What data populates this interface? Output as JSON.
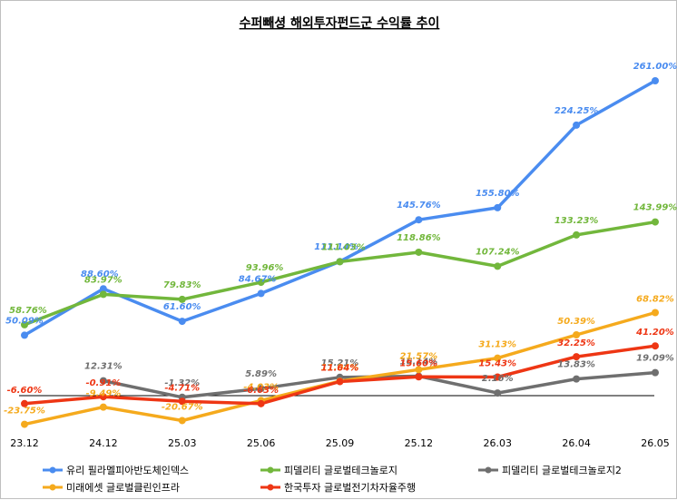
{
  "chart_data": {
    "type": "line",
    "title": "수퍼빼셩 해외투자펀드군 수익률 추이",
    "categories": [
      "23.12",
      "24.12",
      "25.03",
      "25.06",
      "25.09",
      "25.12",
      "26.03",
      "26.04",
      "26.05"
    ],
    "ylim": [
      -40,
      280
    ],
    "grid": false,
    "legend_position": "bottom",
    "series": [
      {
        "name": "유리 필라멜피아반도체인덱스",
        "color": "#4a8cf0",
        "values": [
          50.09,
          88.6,
          61.6,
          84.67,
          111.14,
          145.76,
          155.8,
          224.25,
          261.0
        ],
        "labels": [
          "50.09%",
          "88.60%",
          "61.60%",
          "84.67%",
          "111.14%",
          "145.76%",
          "155.80%",
          "224.25%",
          "261.00%"
        ]
      },
      {
        "name": "피델리티 글로벌테크놀로지",
        "color": "#72b73c",
        "values": [
          58.76,
          83.97,
          79.83,
          93.96,
          111.03,
          118.86,
          107.24,
          133.23,
          143.99
        ],
        "labels": [
          "58.76%",
          "83.97%",
          "79.83%",
          "93.96%",
          "111.03%",
          "118.86%",
          "107.24%",
          "133.23%",
          "143.99%"
        ]
      },
      {
        "name": "피델리티 글로벌테크놀로지2",
        "color": "#6f6f6f",
        "values": [
          null,
          12.31,
          -1.32,
          5.89,
          15.21,
          16.14,
          2.16,
          13.83,
          19.09
        ],
        "labels": [
          "",
          "12.31%",
          "-1.32%",
          "5.89%",
          "15.21%",
          "16.14%",
          "2.16%",
          "13.83%",
          "19.09%"
        ]
      },
      {
        "name": "미래에셋 글로벌클린인프라",
        "color": "#f5aa1d",
        "values": [
          -23.75,
          -9.49,
          -20.67,
          -4.03,
          11.94,
          21.57,
          31.13,
          50.39,
          68.82
        ],
        "labels": [
          "-23.75%",
          "-9.49%",
          "-20.67%",
          "-4.03%",
          "11.94%",
          "21.57%",
          "31.13%",
          "50.39%",
          "68.82%"
        ]
      },
      {
        "name": "한국투자 글로벌전기차자율주행",
        "color": "#ee3614",
        "values": [
          -6.6,
          -0.91,
          -4.71,
          -6.63,
          11.64,
          15.6,
          15.43,
          32.25,
          41.2
        ],
        "labels": [
          "-6.60%",
          "-0.91%",
          "-4.71%",
          "-6.63%",
          "11.64%",
          "15.60%",
          "15.43%",
          "32.25%",
          "41.20%"
        ]
      }
    ]
  }
}
